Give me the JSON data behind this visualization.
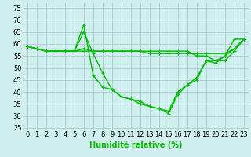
{
  "x": [
    0,
    1,
    2,
    3,
    4,
    5,
    6,
    7,
    8,
    9,
    10,
    11,
    12,
    13,
    14,
    15,
    16,
    17,
    18,
    19,
    20,
    21,
    22,
    23
  ],
  "series": [
    [
      59,
      58,
      57,
      57,
      57,
      57,
      68,
      47,
      42,
      41,
      38,
      37,
      35,
      34,
      33,
      31,
      39,
      43,
      45,
      53,
      53,
      55,
      62,
      62
    ],
    [
      59,
      58,
      57,
      57,
      57,
      57,
      65,
      56,
      48,
      41,
      38,
      37,
      36,
      34,
      33,
      32,
      40,
      43,
      46,
      53,
      52,
      55,
      58,
      62
    ],
    [
      59,
      58,
      57,
      57,
      57,
      57,
      58,
      57,
      57,
      57,
      57,
      57,
      57,
      56,
      56,
      56,
      56,
      56,
      56,
      56,
      56,
      56,
      58,
      62
    ],
    [
      59,
      58,
      57,
      57,
      57,
      57,
      57,
      57,
      57,
      57,
      57,
      57,
      57,
      57,
      57,
      57,
      57,
      57,
      55,
      55,
      53,
      53,
      57,
      62
    ]
  ],
  "line_color": "#00bb00",
  "marker": "+",
  "bg_color": "#d0f0f0",
  "grid_color": "#aacccc",
  "ylabel_ticks": [
    25,
    30,
    35,
    40,
    45,
    50,
    55,
    60,
    65,
    70,
    75
  ],
  "xlim": [
    -0.5,
    23.5
  ],
  "ylim": [
    24,
    77
  ],
  "xlabel": "Humidité relative (%)",
  "xlabel_fontsize": 7,
  "tick_fontsize": 6,
  "line_width": 1.0,
  "marker_size": 3.5
}
